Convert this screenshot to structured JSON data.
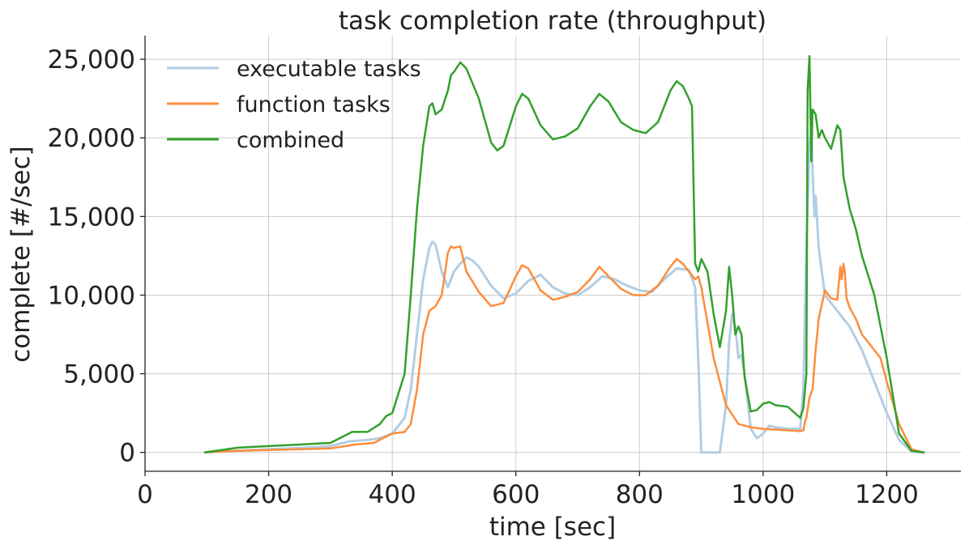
{
  "chart_data": {
    "type": "line",
    "title": "task completion rate (throughput)",
    "xlabel": "time [sec]",
    "ylabel": "complete [#/sec]",
    "xlim": [
      0,
      1320
    ],
    "ylim": [
      -1200,
      26500
    ],
    "xticks": [
      0,
      200,
      400,
      600,
      800,
      1000,
      1200
    ],
    "xtick_labels": [
      "0",
      "200",
      "400",
      "600",
      "800",
      "1000",
      "1200"
    ],
    "yticks": [
      0,
      5000,
      10000,
      15000,
      20000,
      25000
    ],
    "ytick_labels": [
      "0",
      "5,000",
      "10,000",
      "15,000",
      "20,000",
      "25,000"
    ],
    "grid": true,
    "legend_position": "top-left",
    "series": [
      {
        "name": "executable tasks",
        "color": "#b3cde3",
        "x": [
          97,
          150,
          200,
          250,
          300,
          330,
          360,
          380,
          400,
          420,
          430,
          440,
          450,
          460,
          465,
          470,
          480,
          490,
          500,
          510,
          520,
          530,
          540,
          560,
          580,
          600,
          620,
          640,
          660,
          680,
          700,
          720,
          740,
          760,
          780,
          800,
          820,
          840,
          860,
          880,
          890,
          895,
          900,
          920,
          930,
          940,
          945,
          950,
          955,
          960,
          965,
          970,
          980,
          990,
          1000,
          1010,
          1020,
          1040,
          1060,
          1065,
          1070,
          1075,
          1078,
          1080,
          1083,
          1085,
          1090,
          1100,
          1120,
          1140,
          1160,
          1180,
          1200,
          1220,
          1240,
          1260
        ],
        "y": [
          0,
          100,
          200,
          280,
          400,
          700,
          800,
          900,
          1200,
          2200,
          4000,
          7500,
          11000,
          13000,
          13400,
          13200,
          11500,
          10500,
          11500,
          12000,
          12400,
          12200,
          11800,
          10600,
          9800,
          10100,
          10900,
          11300,
          10500,
          10100,
          10000,
          10500,
          11200,
          11000,
          10600,
          10300,
          10200,
          11000,
          11700,
          11600,
          10500,
          6000,
          0,
          0,
          0,
          3000,
          7000,
          8800,
          8000,
          6000,
          6200,
          5000,
          1500,
          900,
          1200,
          1700,
          1600,
          1500,
          1500,
          4000,
          13000,
          19500,
          20500,
          18000,
          15000,
          16300,
          13000,
          10000,
          9000,
          8000,
          6500,
          4500,
          2500,
          800,
          50,
          0
        ]
      },
      {
        "name": "function tasks",
        "color": "#fd8d3c",
        "x": [
          97,
          150,
          200,
          250,
          300,
          340,
          370,
          390,
          400,
          420,
          430,
          440,
          450,
          460,
          470,
          480,
          490,
          495,
          500,
          510,
          520,
          540,
          560,
          580,
          600,
          610,
          620,
          640,
          660,
          680,
          700,
          720,
          735,
          750,
          770,
          790,
          810,
          830,
          850,
          860,
          870,
          880,
          890,
          895,
          900,
          920,
          940,
          960,
          980,
          1000,
          1020,
          1040,
          1060,
          1065,
          1068,
          1070,
          1075,
          1080,
          1085,
          1090,
          1100,
          1110,
          1120,
          1125,
          1127,
          1130,
          1132,
          1135,
          1140,
          1150,
          1160,
          1180,
          1190,
          1200,
          1220,
          1240,
          1260
        ],
        "y": [
          0,
          100,
          150,
          200,
          250,
          500,
          600,
          1000,
          1200,
          1300,
          1800,
          4000,
          7500,
          9000,
          9300,
          10000,
          12700,
          13100,
          13000,
          13100,
          11500,
          10200,
          9300,
          9500,
          11200,
          11900,
          11700,
          10300,
          9700,
          9900,
          10200,
          11000,
          11800,
          11200,
          10400,
          10000,
          10000,
          10600,
          11800,
          12300,
          12000,
          11500,
          11000,
          11200,
          10500,
          6000,
          3000,
          1800,
          1600,
          1500,
          1450,
          1400,
          1350,
          1400,
          2000,
          2200,
          3500,
          4000,
          6500,
          8500,
          10300,
          9800,
          9700,
          11800,
          11000,
          12000,
          11500,
          9800,
          9200,
          8500,
          7500,
          6500,
          6000,
          4500,
          1800,
          200,
          0
        ]
      },
      {
        "name": "combined",
        "color": "#33a02c",
        "x": [
          97,
          150,
          200,
          250,
          300,
          320,
          335,
          360,
          380,
          390,
          400,
          420,
          430,
          440,
          450,
          460,
          465,
          470,
          480,
          490,
          495,
          500,
          510,
          520,
          540,
          560,
          570,
          580,
          600,
          610,
          620,
          640,
          660,
          680,
          700,
          720,
          735,
          750,
          770,
          790,
          810,
          830,
          850,
          860,
          870,
          880,
          885,
          890,
          895,
          900,
          910,
          920,
          930,
          940,
          945,
          950,
          955,
          960,
          965,
          970,
          980,
          990,
          1000,
          1010,
          1020,
          1040,
          1060,
          1065,
          1070,
          1072,
          1075,
          1078,
          1080,
          1085,
          1090,
          1095,
          1100,
          1110,
          1120,
          1125,
          1130,
          1135,
          1140,
          1150,
          1160,
          1180,
          1200,
          1220,
          1240,
          1260
        ],
        "y": [
          0,
          300,
          400,
          500,
          600,
          1000,
          1300,
          1300,
          1800,
          2300,
          2500,
          5000,
          10000,
          15500,
          19500,
          22000,
          22200,
          21500,
          21800,
          23000,
          24000,
          24200,
          24800,
          24400,
          22500,
          19700,
          19200,
          19500,
          22000,
          22800,
          22500,
          20800,
          19900,
          20100,
          20600,
          22000,
          22800,
          22300,
          21000,
          20500,
          20300,
          21000,
          23000,
          23600,
          23300,
          22500,
          22000,
          12000,
          11500,
          12300,
          11500,
          8800,
          6700,
          9000,
          11800,
          10000,
          7500,
          8000,
          7500,
          4800,
          2600,
          2700,
          3100,
          3200,
          3000,
          2900,
          2200,
          2800,
          5000,
          23000,
          25200,
          18500,
          21800,
          21500,
          20000,
          20500,
          20000,
          19300,
          20800,
          20500,
          17500,
          16500,
          15500,
          14200,
          12500,
          10000,
          6000,
          1200,
          100,
          0
        ]
      }
    ]
  }
}
